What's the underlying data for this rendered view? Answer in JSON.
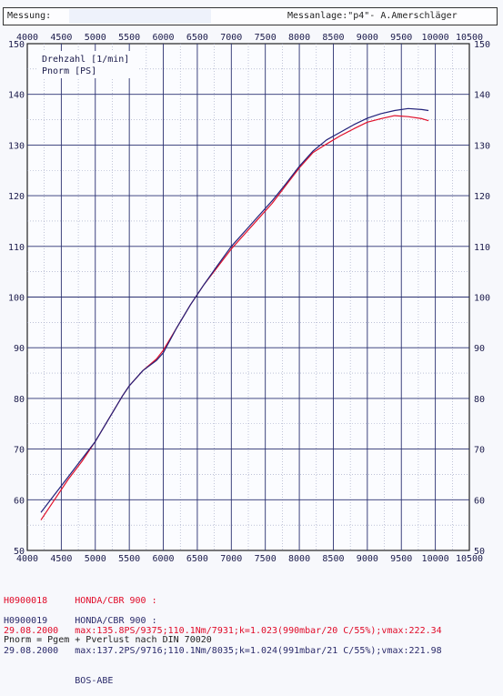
{
  "header": {
    "left_label": "Messung:",
    "right_label": "Messanlage:\"p4\"- A.Amerschläger"
  },
  "chart_data": {
    "type": "line",
    "title": "",
    "xlabel": "Drehzahl [1/min]",
    "ylabel": "Pnorm [PS]",
    "xlim": [
      4000,
      10500
    ],
    "ylim": [
      50,
      150
    ],
    "x_ticks": [
      "4000",
      "4500",
      "5000",
      "5500",
      "6000",
      "6500",
      "7000",
      "7500",
      "8000",
      "8500",
      "9000",
      "9500",
      "10000",
      "10500"
    ],
    "y_ticks": [
      "50",
      "60",
      "70",
      "80",
      "90",
      "100",
      "110",
      "120",
      "130",
      "140",
      "150"
    ],
    "grid": true,
    "series": [
      {
        "name": "H0900018",
        "color": "#e0102a",
        "x": [
          4200,
          4400,
          4600,
          4800,
          5000,
          5200,
          5400,
          5500,
          5700,
          5900,
          6000,
          6200,
          6400,
          6600,
          6800,
          7000,
          7200,
          7400,
          7600,
          7800,
          8000,
          8200,
          8400,
          8600,
          8800,
          9000,
          9200,
          9400,
          9600,
          9800,
          9900
        ],
        "y": [
          56,
          60,
          64,
          67.5,
          71.5,
          76,
          80.5,
          82.5,
          85.5,
          87.8,
          89.5,
          94,
          98.5,
          102.5,
          106,
          109.5,
          112.5,
          115.5,
          118.5,
          122,
          125.5,
          128.5,
          130.2,
          131.8,
          133.2,
          134.5,
          135.2,
          135.8,
          135.6,
          135.2,
          134.8
        ]
      },
      {
        "name": "H0900019",
        "color": "#22227a",
        "x": [
          4200,
          4400,
          4600,
          4800,
          5000,
          5200,
          5400,
          5500,
          5700,
          5900,
          6000,
          6200,
          6400,
          6600,
          6800,
          7000,
          7200,
          7400,
          7600,
          7800,
          8000,
          8200,
          8400,
          8600,
          8800,
          9000,
          9200,
          9400,
          9600,
          9800,
          9900
        ],
        "y": [
          57.5,
          61,
          64.5,
          68,
          71.5,
          76,
          80.5,
          82.5,
          85.5,
          87.5,
          89,
          94,
          98.5,
          102.5,
          106.3,
          110,
          113,
          116,
          119,
          122.3,
          125.8,
          128.8,
          131,
          132.5,
          134,
          135.3,
          136.2,
          136.8,
          137.2,
          137,
          136.8
        ]
      }
    ],
    "annotations": [
      "Drehzahl [1/min]",
      "Pnorm [PS]"
    ]
  },
  "runs": [
    {
      "id": "H0900018",
      "date": "29.08.2000",
      "model": "HONDA/CBR 900 :",
      "details": "max:135.8PS/9375;110.1Nm/7931;k=1.023(990mbar/20 C/55%);vmax:222.34",
      "extra": ""
    },
    {
      "id": "H0900019",
      "date": "29.08.2000",
      "model": "HONDA/CBR 900 :",
      "details": "max:137.2PS/9716;110.1Nm/8035;k=1.024(991mbar/21 C/55%);vmax:221.98",
      "extra": "BOS-ABE"
    }
  ],
  "footer": {
    "formula": "Pnorm = Pgem + Pverlust nach DIN 70020"
  }
}
